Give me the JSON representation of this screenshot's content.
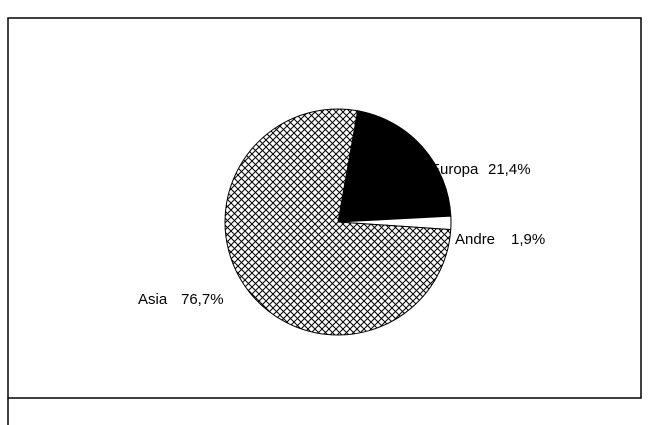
{
  "chart_data": {
    "type": "pie",
    "categories": [
      "Europa",
      "Andre",
      "Asia"
    ],
    "values": [
      21.4,
      1.9,
      76.7
    ],
    "value_labels": [
      "21,4%",
      "1,9%",
      "76,7%"
    ],
    "colors": [
      "#000000",
      "#ffffff",
      "#ffffff"
    ],
    "hatched": [
      false,
      false,
      true
    ]
  }
}
